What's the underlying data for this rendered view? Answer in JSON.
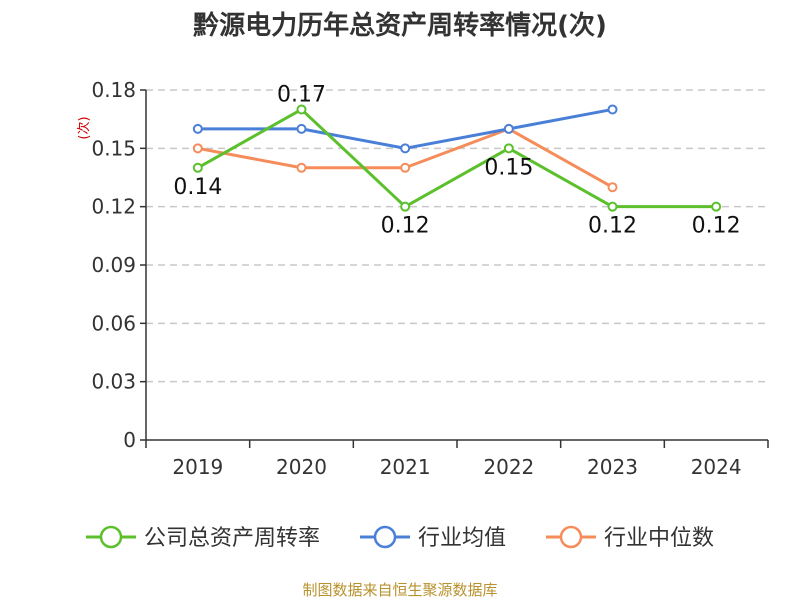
{
  "title": "黔源电力历年总资产周转率情况(次)",
  "source_text": "制图数据来自恒生聚源数据库",
  "chart_data": {
    "type": "line",
    "title": "黔源电力历年总资产周转率情况(次)",
    "ylabel": "(次)",
    "xlabel": "",
    "categories": [
      "2019",
      "2020",
      "2021",
      "2022",
      "2023",
      "2024"
    ],
    "ylim": [
      0,
      0.18
    ],
    "yticks": [
      "0",
      "0.03",
      "0.06",
      "0.09",
      "0.12",
      "0.15",
      "0.18"
    ],
    "ytick_values": [
      0,
      0.03,
      0.06,
      0.09,
      0.12,
      0.15,
      0.18
    ],
    "grid": true,
    "legend_position": "bottom",
    "series": [
      {
        "name": "公司总资产周转率",
        "color": "#5cc02d",
        "values": [
          0.14,
          0.17,
          0.12,
          0.15,
          0.12,
          0.12
        ],
        "data_labels": [
          "0.14",
          "0.17",
          "0.12",
          "0.15",
          "0.12",
          "0.12"
        ]
      },
      {
        "name": "行业均值",
        "color": "#4a7fd8",
        "values": [
          0.16,
          0.16,
          0.15,
          0.16,
          0.17,
          null
        ]
      },
      {
        "name": "行业中位数",
        "color": "#f58c5a",
        "values": [
          0.15,
          0.14,
          0.14,
          0.16,
          0.13,
          null
        ]
      }
    ]
  }
}
